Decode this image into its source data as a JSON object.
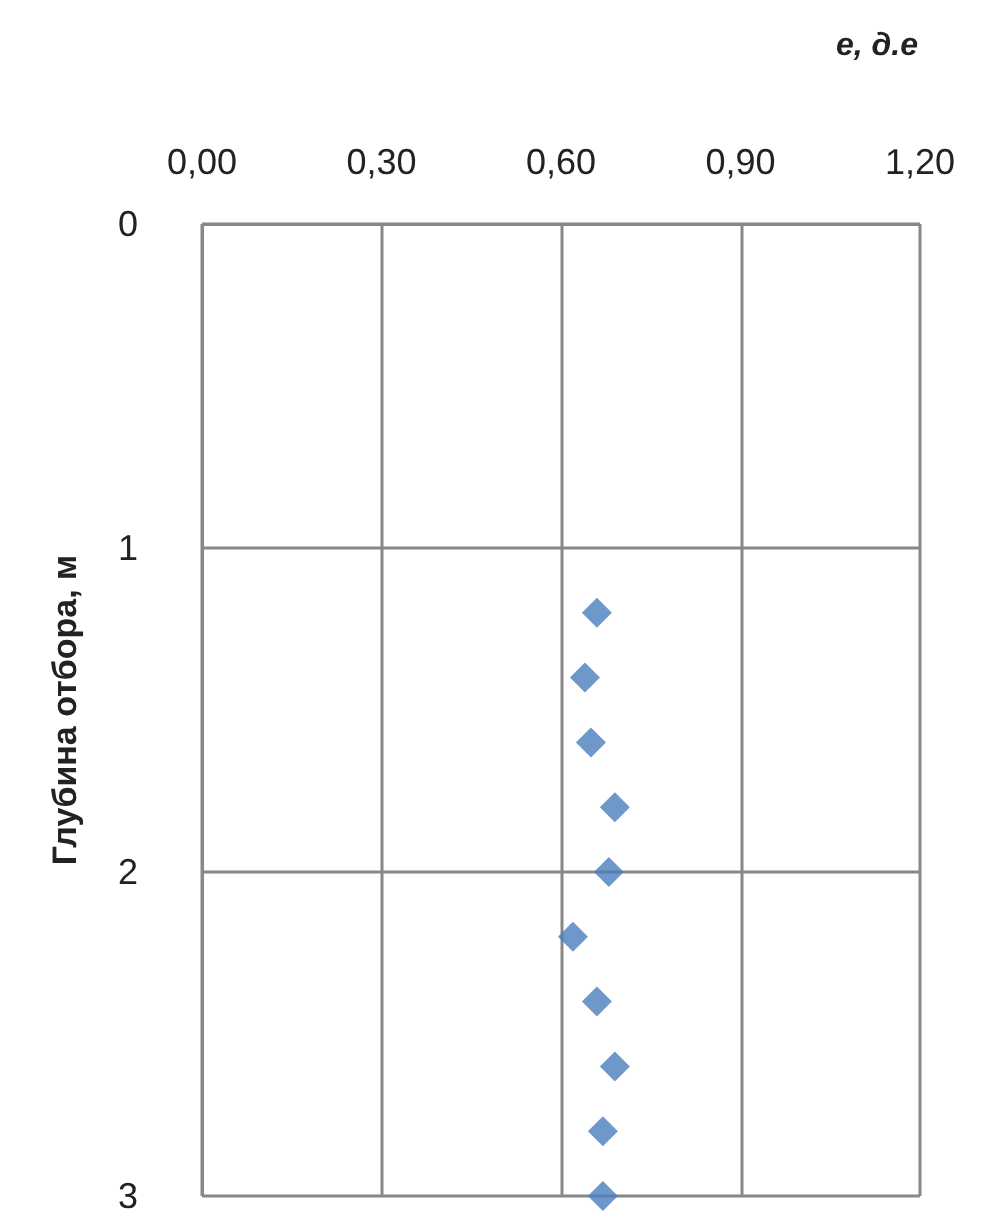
{
  "chart_data": {
    "type": "scatter",
    "xlabel": "e, д.е",
    "ylabel": "Глубина отбора, м",
    "x": [
      0.66,
      0.64,
      0.65,
      0.69,
      0.68,
      0.62,
      0.66,
      0.69,
      0.67,
      0.67
    ],
    "series": [
      {
        "color": "#4a7ebb",
        "values": [
          1.2,
          1.4,
          1.6,
          1.8,
          2.0,
          2.2,
          2.4,
          2.6,
          2.8,
          3.0
        ]
      }
    ],
    "xlim": [
      0,
      1.2
    ],
    "xticks": [
      {
        "value": 0,
        "label": "0,00"
      },
      {
        "value": 0.3,
        "label": "0,30"
      },
      {
        "value": 0.6,
        "label": "0,60"
      },
      {
        "value": 0.9,
        "label": "0,90"
      },
      {
        "value": 1.2,
        "label": "1,20"
      }
    ],
    "ylim": [
      3,
      0
    ],
    "yticks": [
      0,
      1,
      2,
      3
    ],
    "grid": true,
    "marker": "diamond"
  }
}
